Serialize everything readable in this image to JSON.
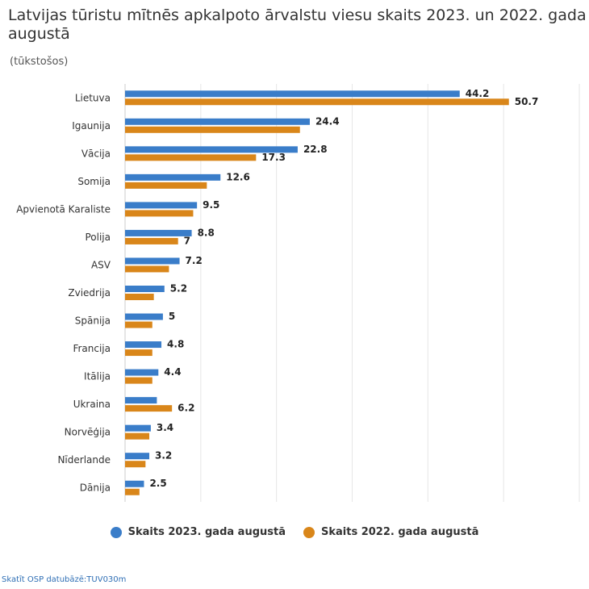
{
  "page": {
    "title": "Latvijas tūristu mītnēs apkalpoto ārvalstu viesu skaits 2023. un 2022. gada augustā",
    "subtitle": "(tūkstošos)",
    "source": "Skatīt OSP datubāzē:TUV030m"
  },
  "chart_data": {
    "type": "bar",
    "orientation": "horizontal",
    "title": "Latvijas tūristu mītnēs apkalpoto ārvalstu viesu skaits 2023. un 2022. gada augustā",
    "subtitle": "(tūkstošos)",
    "xlim": [
      0,
      60
    ],
    "grid": true,
    "legend_position": "bottom-center",
    "categories": [
      "Lietuva",
      "Igaunija",
      "Vācija",
      "Somija",
      "Apvienotā Karaliste",
      "Polija",
      "ASV",
      "Zviedrija",
      "Spānija",
      "Francija",
      "Itālija",
      "Ukraina",
      "Norvēģija",
      "Nīderlande",
      "Dānija"
    ],
    "series": [
      {
        "name": "Skaits 2023. gada augustā",
        "color": "#3a7dc9",
        "values": [
          44.2,
          24.4,
          22.8,
          12.6,
          9.5,
          8.8,
          7.2,
          5.2,
          5,
          4.8,
          4.4,
          4.2,
          3.4,
          3.2,
          2.5
        ],
        "labels": [
          "44.2",
          "24.4",
          "22.8",
          "12.6",
          "9.5",
          "8.8",
          "7.2",
          "5.2",
          "5",
          "4.8",
          "4.4",
          "",
          "3.4",
          "3.2",
          "2.5"
        ]
      },
      {
        "name": "Skaits 2022. gada augustā",
        "color": "#d9861a",
        "values": [
          50.7,
          23.1,
          17.3,
          10.8,
          9.0,
          7,
          5.8,
          3.8,
          3.6,
          3.6,
          3.6,
          6.2,
          3.2,
          2.7,
          1.9
        ],
        "labels": [
          "50.7",
          "",
          "17.3",
          "",
          "",
          "7",
          "",
          "",
          "",
          "",
          "",
          "6.2",
          "",
          "",
          ""
        ]
      }
    ]
  }
}
